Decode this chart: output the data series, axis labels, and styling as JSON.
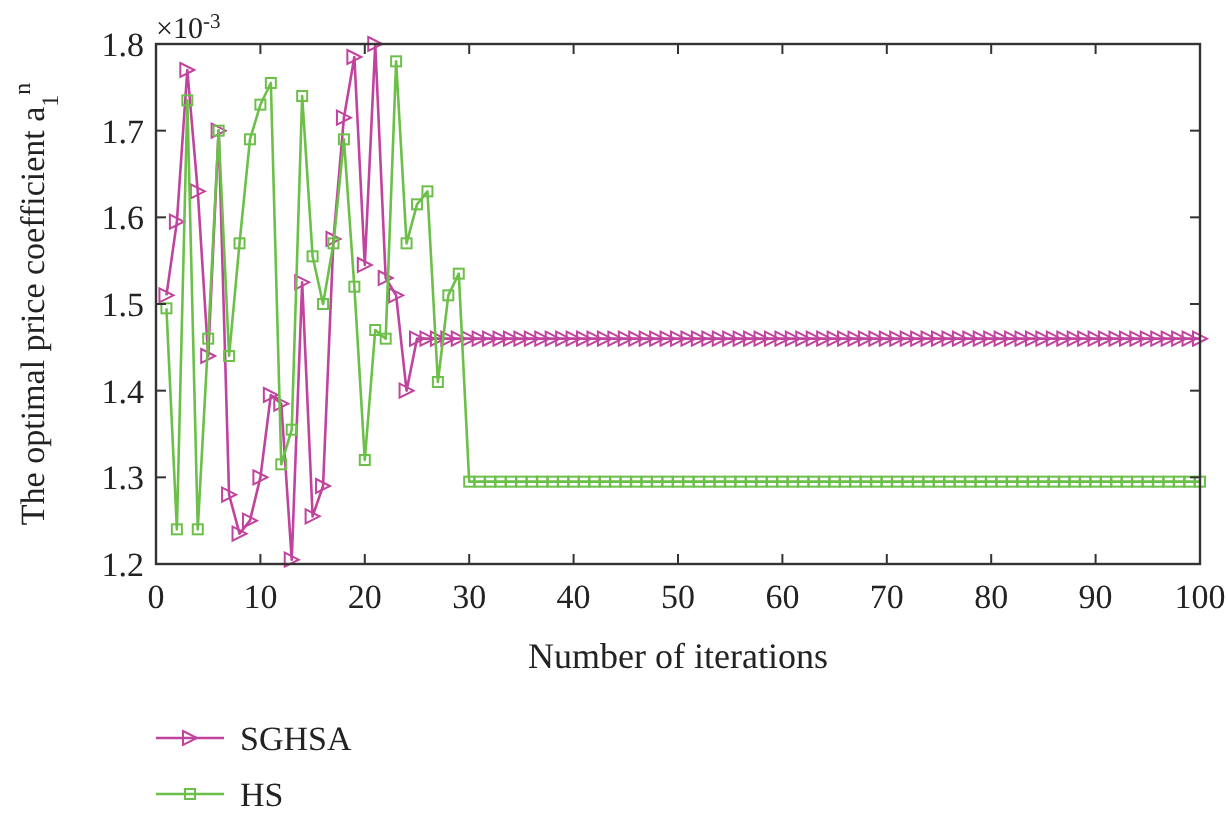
{
  "chart_data": {
    "type": "line",
    "xlabel": "Number of iterations",
    "ylabel": "The optimal price coefficient a$_{1}$$^{n}$",
    "annotations": [
      "×10$^{-3}$"
    ],
    "x": [
      1,
      2,
      3,
      4,
      5,
      6,
      7,
      8,
      9,
      10,
      11,
      12,
      13,
      14,
      15,
      16,
      17,
      18,
      19,
      20,
      21,
      22,
      23,
      24,
      25,
      26,
      27,
      28,
      29,
      30,
      31,
      32,
      33,
      34,
      35,
      36,
      37,
      38,
      39,
      40,
      41,
      42,
      43,
      44,
      45,
      46,
      47,
      48,
      49,
      50,
      51,
      52,
      53,
      54,
      55,
      56,
      57,
      58,
      59,
      60,
      61,
      62,
      63,
      64,
      65,
      66,
      67,
      68,
      69,
      70,
      71,
      72,
      73,
      74,
      75,
      76,
      77,
      78,
      79,
      80,
      81,
      82,
      83,
      84,
      85,
      86,
      87,
      88,
      89,
      90,
      91,
      92,
      93,
      94,
      95,
      96,
      97,
      98,
      99,
      100
    ],
    "xlim": [
      0,
      100
    ],
    "xticks": [
      0,
      10,
      20,
      30,
      40,
      50,
      60,
      70,
      80,
      90,
      100
    ],
    "ylim": [
      1.2,
      1.8
    ],
    "yticks": [
      1.2,
      1.3,
      1.4,
      1.5,
      1.6,
      1.7,
      1.8
    ],
    "grid": false,
    "legend": "bottom left",
    "line_style": "solid",
    "series": [
      {
        "name": "SGHSA",
        "color": "#c0449e",
        "marker": "triangle",
        "values": [
          1.51,
          1.595,
          1.77,
          1.63,
          1.44,
          1.7,
          1.28,
          1.235,
          1.25,
          1.3,
          1.395,
          1.385,
          1.205,
          1.525,
          1.255,
          1.29,
          1.575,
          1.715,
          1.785,
          1.545,
          1.8,
          1.53,
          1.51,
          1.4,
          1.46,
          1.46,
          1.46,
          1.46,
          1.46,
          1.46,
          1.46,
          1.46,
          1.46,
          1.46,
          1.46,
          1.46,
          1.46,
          1.46,
          1.46,
          1.46,
          1.46,
          1.46,
          1.46,
          1.46,
          1.46,
          1.46,
          1.46,
          1.46,
          1.46,
          1.46,
          1.46,
          1.46,
          1.46,
          1.46,
          1.46,
          1.46,
          1.46,
          1.46,
          1.46,
          1.46,
          1.46,
          1.46,
          1.46,
          1.46,
          1.46,
          1.46,
          1.46,
          1.46,
          1.46,
          1.46,
          1.46,
          1.46,
          1.46,
          1.46,
          1.46,
          1.46,
          1.46,
          1.46,
          1.46,
          1.46,
          1.46,
          1.46,
          1.46,
          1.46,
          1.46,
          1.46,
          1.46,
          1.46,
          1.46,
          1.46,
          1.46,
          1.46,
          1.46,
          1.46,
          1.46,
          1.46,
          1.46,
          1.46,
          1.46,
          1.46
        ]
      },
      {
        "name": "HS",
        "color": "#6cc04a",
        "marker": "square",
        "values": [
          1.495,
          1.24,
          1.735,
          1.24,
          1.46,
          1.7,
          1.44,
          1.57,
          1.69,
          1.73,
          1.755,
          1.315,
          1.355,
          1.74,
          1.555,
          1.5,
          1.57,
          1.69,
          1.52,
          1.32,
          1.47,
          1.46,
          1.78,
          1.57,
          1.615,
          1.63,
          1.41,
          1.51,
          1.535,
          1.295,
          1.295,
          1.295,
          1.295,
          1.295,
          1.295,
          1.295,
          1.295,
          1.295,
          1.295,
          1.295,
          1.295,
          1.295,
          1.295,
          1.295,
          1.295,
          1.295,
          1.295,
          1.295,
          1.295,
          1.295,
          1.295,
          1.295,
          1.295,
          1.295,
          1.295,
          1.295,
          1.295,
          1.295,
          1.295,
          1.295,
          1.295,
          1.295,
          1.295,
          1.295,
          1.295,
          1.295,
          1.295,
          1.295,
          1.295,
          1.295,
          1.295,
          1.295,
          1.295,
          1.295,
          1.295,
          1.295,
          1.295,
          1.295,
          1.295,
          1.295,
          1.295,
          1.295,
          1.295,
          1.295,
          1.295,
          1.295,
          1.295,
          1.295,
          1.295,
          1.295,
          1.295,
          1.295,
          1.295,
          1.295,
          1.295,
          1.295,
          1.295,
          1.295,
          1.295,
          1.295
        ]
      }
    ]
  }
}
